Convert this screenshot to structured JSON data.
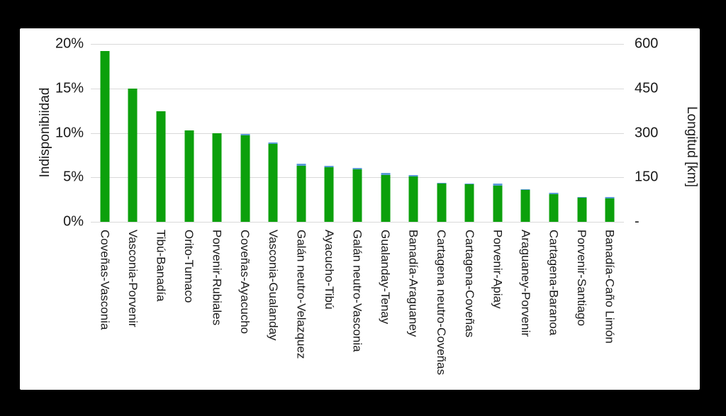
{
  "window": {
    "background_color": "#000000",
    "card_background_color": "#ffffff"
  },
  "chart_data": {
    "type": "bar",
    "title": "",
    "legend": "none",
    "grid": true,
    "gridline_color": "#d9d9d9",
    "categories": [
      "Coveñas-Vasconia",
      "Vasconia-Porvenir",
      "Tibú-Banadía",
      "Orito-Tumaco",
      "Porvenir-Rubiales",
      "Coveñas-Ayacucho",
      "Vasconia-Gualanday",
      "Galán neutro-Velazquez",
      "Ayacucho-Tibú",
      "Galán neutro-Vasconia",
      "Gualanday-Tenay",
      "Banadía-Araguaney",
      "Cartagena neutro-Coveñas",
      "Cartagena-Coveñas",
      "Porvenir-Apiay",
      "Araguaney-Porvenir",
      "Cartagena-Baranoa",
      "Porvenir-Santiago",
      "Banadía-Caño Limón"
    ],
    "series": [
      {
        "name": "Indisponibiidad",
        "axis": "left",
        "unit": "%",
        "color": "#0ca00c",
        "values": [
          19.2,
          15.0,
          12.4,
          10.3,
          10.0,
          9.7,
          8.8,
          6.3,
          6.1,
          5.9,
          5.3,
          5.1,
          4.3,
          4.2,
          4.1,
          3.6,
          3.1,
          2.7,
          2.6
        ]
      },
      {
        "name": "Longitud [km]",
        "axis": "right",
        "unit": "km",
        "color": "#5b9bd5",
        "note": "drawn behind the green bars; only thin blue caps are visible where the km bar exceeds the % bar; values estimated from visible caps",
        "values": [
          560,
          445,
          365,
          305,
          296,
          296,
          268,
          196,
          189,
          182,
          164,
          157,
          132,
          130,
          128,
          110,
          97,
          84,
          83
        ]
      }
    ],
    "left_axis": {
      "label": "Indisponibiidad",
      "min": 0,
      "max": 20,
      "tick_labels": [
        "20%",
        "15%",
        "10%",
        "5%",
        "0%"
      ]
    },
    "right_axis": {
      "label": "Longitud [km]",
      "min": 0,
      "max": 600,
      "tick_labels": [
        "600",
        "450",
        "300",
        "150",
        "-"
      ]
    }
  }
}
